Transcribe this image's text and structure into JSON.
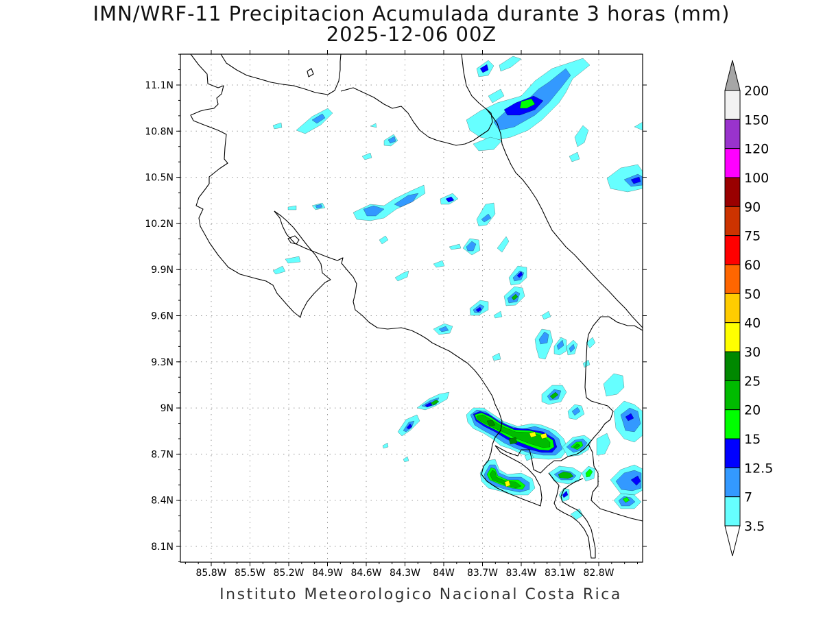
{
  "title": {
    "line1": "IMN/WRF-11 Precipitacion Acumulada durante 3 horas (mm)",
    "line2": "2025-12-06 00Z"
  },
  "footer": "Instituto Meteorologico Nacional Costa Rica",
  "map": {
    "lat_ticks": [
      "11.1N",
      "10.8N",
      "10.5N",
      "10.2N",
      "9.9N",
      "9.6N",
      "9.3N",
      "9N",
      "8.7N",
      "8.4N",
      "8.1N"
    ],
    "lon_ticks": [
      "85.8W",
      "85.5W",
      "85.2W",
      "84.9W",
      "84.6W",
      "84.3W",
      "84W",
      "83.7W",
      "83.4W",
      "83.1W",
      "82.8W"
    ],
    "grid": "dotted",
    "frame_color": "#000000"
  },
  "colorbar": {
    "labels": [
      "200",
      "150",
      "120",
      "100",
      "90",
      "75",
      "60",
      "50",
      "40",
      "30",
      "25",
      "20",
      "15",
      "12.5",
      "7",
      "3.5"
    ],
    "colors": [
      "#a6a6a6",
      "#f2f2f2",
      "#9933cc",
      "#ff00ff",
      "#990000",
      "#cc3300",
      "#ff0000",
      "#ff6600",
      "#ffcc00",
      "#ffff00",
      "#008800",
      "#00bb00",
      "#00ff00",
      "#0000ff",
      "#3399ff",
      "#66ffff"
    ]
  },
  "precip_colors": {
    "c35": "#66ffff",
    "c7": "#3399ff",
    "c125": "#0000ff",
    "c15": "#00ff00",
    "c20": "#00bb00",
    "c25": "#008800",
    "c30": "#ffff00"
  }
}
